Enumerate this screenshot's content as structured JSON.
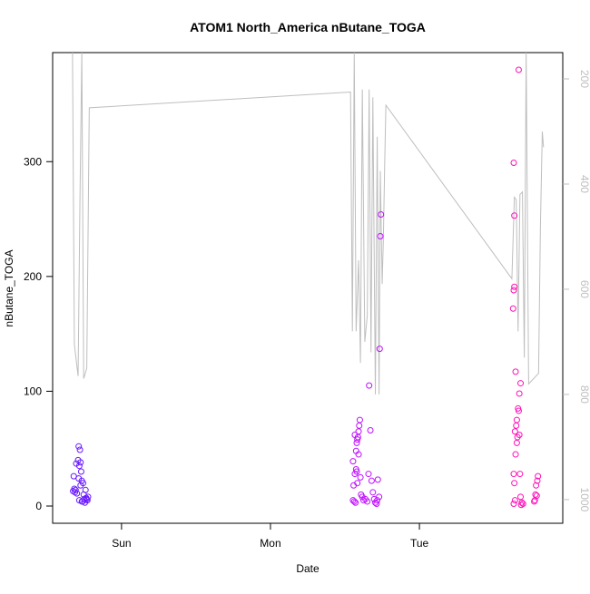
{
  "chart_data": {
    "type": "scatter",
    "title": "ATOM1 North_America nButane_TOGA",
    "xlabel": "Date",
    "ylabel": "nButane_TOGA",
    "xlim": [
      -11.1,
      71.1
    ],
    "xticks": [
      {
        "value": 0,
        "label": "Sun"
      },
      {
        "value": 24,
        "label": "Mon"
      },
      {
        "value": 48,
        "label": "Tue"
      }
    ],
    "ylim": [
      -15,
      395
    ],
    "yticks": [
      0,
      100,
      200,
      300
    ],
    "y2lim": [
      1045,
      150
    ],
    "y2ticks": [
      200,
      400,
      600,
      800,
      1000
    ],
    "y2color": "#bebebe",
    "series": [
      {
        "color": "#6a1aff",
        "x": [
          -7.8,
          -7.6,
          -7.5,
          -7.4,
          -7.2,
          -7.7,
          -7.3,
          -7.0,
          -6.9,
          -6.7,
          -6.6,
          -6.8,
          -6.5,
          -6.9,
          -6.4,
          -6.2,
          -6.6,
          -6.8,
          -6.3,
          -6.0,
          -5.9,
          -5.7,
          -5.5,
          -5.4,
          -6.1,
          -5.8,
          -5.6,
          -6.4
        ],
        "values": [
          13,
          15,
          12,
          14,
          11,
          26,
          37,
          40,
          52,
          49,
          38,
          35,
          30,
          24,
          22,
          20,
          18,
          5,
          4,
          6,
          3,
          7,
          5,
          8,
          10,
          14,
          6,
          4
        ]
      },
      {
        "color": "#c010ff",
        "x": [
          37.3,
          37.5,
          37.7,
          37.4,
          37.6,
          37.3,
          37.8,
          38.0,
          37.9,
          38.1,
          38.2,
          38.3,
          38.4,
          38.0,
          37.8,
          37.9,
          38.5,
          38.6,
          38.8,
          39.0,
          39.3,
          39.6,
          39.8,
          39.9,
          40.1,
          40.3,
          40.5,
          40.7,
          40.9,
          41.1,
          41.3,
          41.6,
          41.7,
          41.8,
          41.5,
          41.2,
          37.6,
          38.2
        ],
        "values": [
          5,
          4,
          3,
          18,
          28,
          39,
          32,
          20,
          55,
          60,
          65,
          70,
          75,
          58,
          48,
          30,
          25,
          10,
          8,
          5,
          6,
          4,
          28,
          105,
          66,
          22,
          12,
          6,
          3,
          2,
          23,
          137,
          235,
          254,
          8,
          5,
          62,
          45
        ]
      },
      {
        "color": "#ff10b8",
        "x": [
          63.2,
          63.4,
          63.3,
          63.2,
          63.5,
          63.4,
          63.6,
          63.7,
          63.9,
          64.1,
          64.3,
          63.5,
          63.1,
          63.2,
          63.3,
          63.3,
          63.2,
          64.0,
          63.8,
          63.7,
          64.0,
          64.1,
          64.2,
          64.3,
          64.5,
          64.7,
          64.4,
          66.6,
          66.7,
          66.8,
          67.0,
          67.1,
          66.9,
          66.5
        ],
        "values": [
          2,
          5,
          20,
          28,
          45,
          65,
          70,
          75,
          85,
          98,
          107,
          117,
          172,
          188,
          191,
          253,
          299,
          380,
          60,
          55,
          83,
          62,
          28,
          8,
          3,
          2,
          1,
          5,
          10,
          18,
          22,
          26,
          9,
          4
        ]
      }
    ],
    "line": {
      "axis": "y2",
      "color": "#bebebe",
      "x": [
        -7.9,
        -7.6,
        -7.0,
        -6.7,
        -6.4,
        -6.1,
        -5.6,
        -5.2,
        36.9,
        37.2,
        37.5,
        37.8,
        38.2,
        38.5,
        38.8,
        39.2,
        39.6,
        39.9,
        40.2,
        40.5,
        40.9,
        41.2,
        41.5,
        41.7,
        42.0,
        42.2,
        42.4,
        42.6,
        62.9,
        63.3,
        63.6,
        63.9,
        64.2,
        64.6,
        64.9,
        65.2,
        65.6,
        67.2,
        67.5,
        67.8,
        68.0
      ],
      "values": [
        150,
        705,
        765,
        430,
        150,
        770,
        750,
        255,
        225,
        680,
        150,
        680,
        545,
        740,
        220,
        700,
        650,
        220,
        720,
        235,
        800,
        310,
        800,
        375,
        590,
        500,
        365,
        250,
        580,
        425,
        430,
        680,
        420,
        415,
        730,
        150,
        780,
        760,
        480,
        300,
        330
      ]
    }
  }
}
